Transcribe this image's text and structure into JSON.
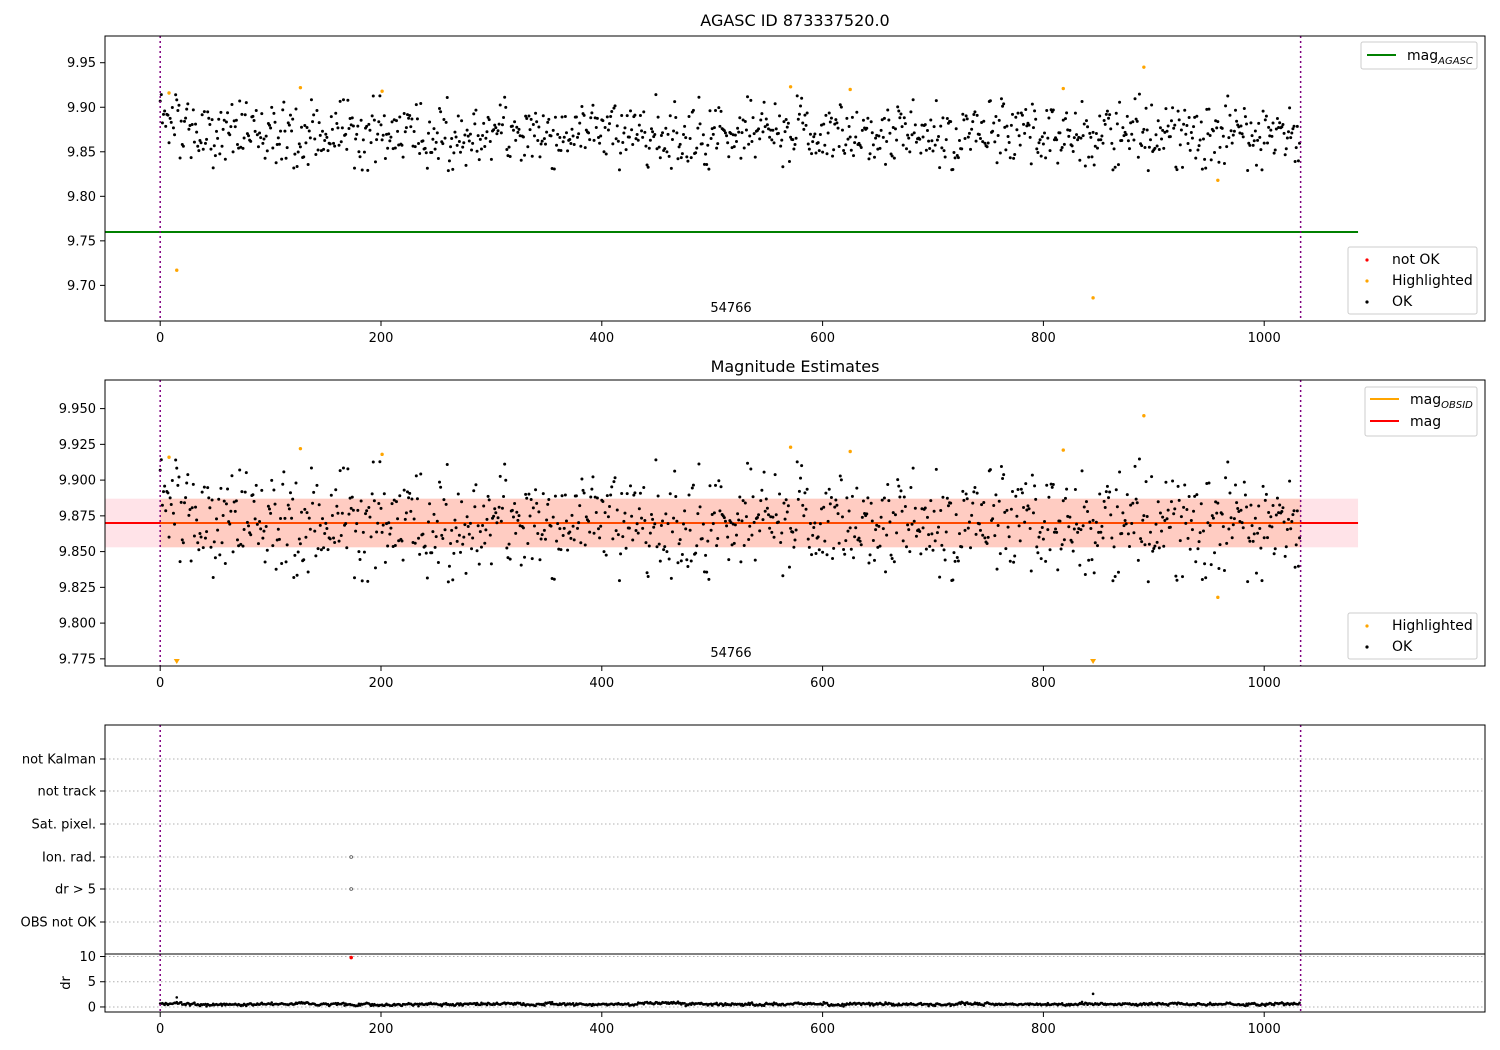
{
  "chart_data": [
    {
      "type": "scatter",
      "title": "AGASC ID 873337520.0",
      "xlim": [
        -50,
        1200
      ],
      "ylim": [
        9.66,
        9.98
      ],
      "xticks": [
        "0",
        "200",
        "400",
        "600",
        "800",
        "1000"
      ],
      "yticks": [
        "9.70",
        "9.75",
        "9.80",
        "9.85",
        "9.90",
        "9.95"
      ],
      "obs_lines_x": [
        0,
        1033
      ],
      "obsid_label": "54766",
      "agasc_mag": 9.76,
      "ok_series": {
        "name": "OK",
        "color": "#000000",
        "n_points": 1033,
        "base": 9.87,
        "scatter": 0.018
      },
      "highlighted_series": {
        "name": "Highlighted",
        "color": "#ffa500",
        "x": [
          8,
          15,
          127,
          201,
          571,
          625,
          818,
          845,
          891,
          958
        ],
        "y": [
          9.916,
          9.717,
          9.922,
          9.918,
          9.923,
          9.92,
          9.921,
          9.686,
          9.945,
          9.818
        ]
      },
      "not_ok_series": {
        "name": "not OK",
        "color": "#ff0000"
      },
      "legend_lines": [
        {
          "label": "mag",
          "sub": "AGASC",
          "color": "#008000"
        }
      ],
      "legend_points": [
        "not OK",
        "Highlighted",
        "OK"
      ]
    },
    {
      "type": "scatter",
      "title": "Magnitude Estimates",
      "xlim": [
        -50,
        1200
      ],
      "ylim": [
        9.77,
        9.97
      ],
      "xticks": [
        "0",
        "200",
        "400",
        "600",
        "800",
        "1000"
      ],
      "yticks": [
        "9.775",
        "9.800",
        "9.825",
        "9.850",
        "9.875",
        "9.900",
        "9.925",
        "9.950"
      ],
      "obs_lines_x": [
        0,
        1033
      ],
      "obsid_label": "54766",
      "mean_mag": 9.87,
      "band_low": 9.853,
      "band_high": 9.887,
      "highlighted_series": {
        "name": "Highlighted",
        "color": "#ffa500",
        "x": [
          8,
          127,
          201,
          571,
          625,
          818,
          891,
          958
        ],
        "y": [
          9.916,
          9.922,
          9.918,
          9.923,
          9.92,
          9.921,
          9.945,
          9.818
        ],
        "low_x": [
          15,
          845
        ]
      },
      "legend_lines": [
        {
          "label": "mag",
          "sub": "OBSID",
          "color": "#ffa500"
        },
        {
          "label": "mag",
          "sub": "",
          "color": "#ff0000"
        }
      ],
      "legend_points": [
        "Highlighted",
        "OK"
      ]
    },
    {
      "type": "scatter",
      "xlim": [
        -50,
        1200
      ],
      "categories": [
        "not Kalman",
        "not track",
        "Sat. pixel.",
        "Ion. rad.",
        "dr > 5",
        "OBS not OK"
      ],
      "flag_points": [
        {
          "category": "Ion. rad.",
          "x": 173
        },
        {
          "category": "dr > 5",
          "x": 173
        }
      ],
      "obs_lines_x": [
        0,
        1033
      ]
    },
    {
      "type": "scatter",
      "xlim": [
        -50,
        1200
      ],
      "ylim": [
        -1,
        10.5
      ],
      "ylabel": "dr",
      "yticks": [
        "0",
        "5",
        "10"
      ],
      "xticks": [
        "0",
        "200",
        "400",
        "600",
        "800",
        "1000"
      ],
      "dr_points": {
        "n_points": 1033,
        "spikes_x": [
          15,
          845
        ],
        "spikes_y": [
          1.9,
          2.6
        ]
      },
      "red_point": {
        "x": 173,
        "y": 9.8
      },
      "obs_lines_x": [
        0,
        1033
      ]
    }
  ]
}
